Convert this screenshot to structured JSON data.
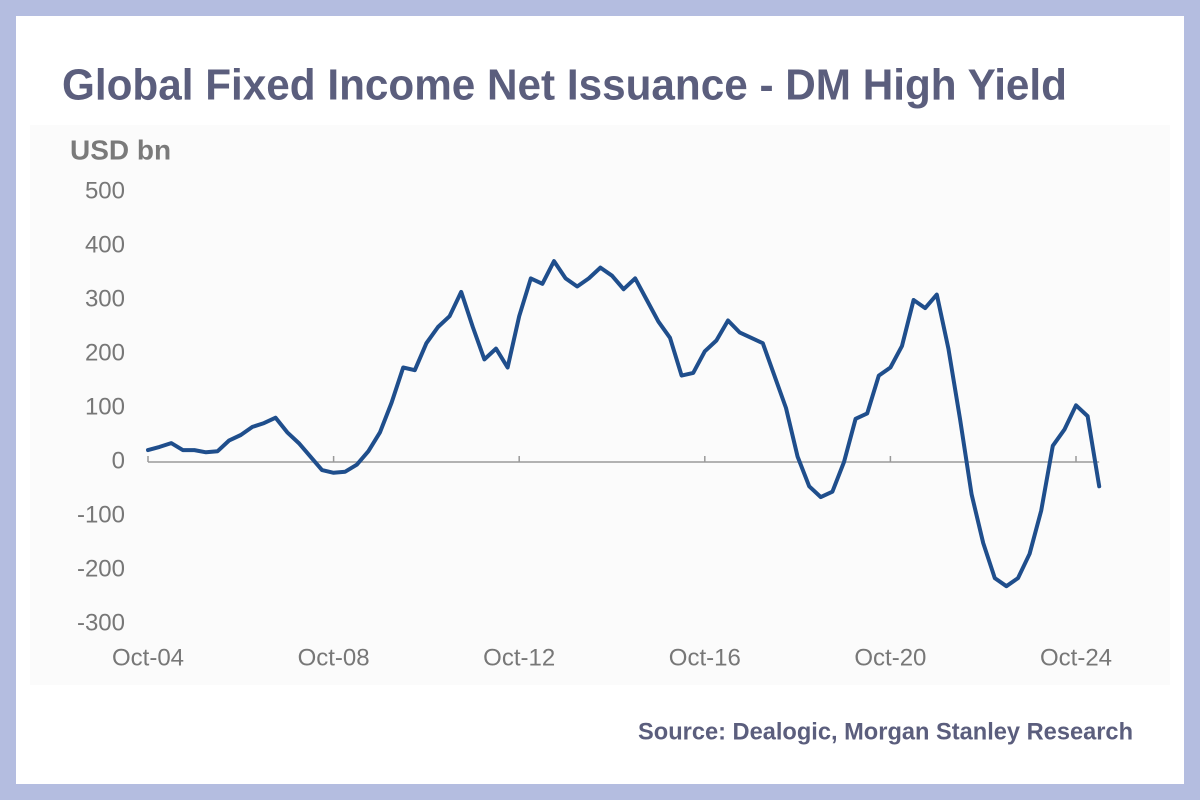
{
  "chart_data": {
    "type": "line",
    "title": "Global Fixed Income Net Issuance - DM High Yield",
    "y_axis_label": "USD bn",
    "source": "Source: Dealogic, Morgan Stanley Research",
    "categories": [
      "Oct-04",
      "Jan-05",
      "Apr-05",
      "Jul-05",
      "Oct-05",
      "Jan-06",
      "Apr-06",
      "Jul-06",
      "Oct-06",
      "Jan-07",
      "Apr-07",
      "Jul-07",
      "Oct-07",
      "Jan-08",
      "Apr-08",
      "Jul-08",
      "Oct-08",
      "Jan-09",
      "Apr-09",
      "Jul-09",
      "Oct-09",
      "Jan-10",
      "Apr-10",
      "Jul-10",
      "Oct-10",
      "Jan-11",
      "Apr-11",
      "Jul-11",
      "Oct-11",
      "Jan-12",
      "Apr-12",
      "Jul-12",
      "Oct-12",
      "Jan-13",
      "Apr-13",
      "Jul-13",
      "Oct-13",
      "Jan-14",
      "Apr-14",
      "Jul-14",
      "Oct-14",
      "Jan-15",
      "Apr-15",
      "Jul-15",
      "Oct-15",
      "Jan-16",
      "Apr-16",
      "Jul-16",
      "Oct-16",
      "Jan-17",
      "Apr-17",
      "Jul-17",
      "Oct-17",
      "Jan-18",
      "Apr-18",
      "Jul-18",
      "Oct-18",
      "Jan-19",
      "Apr-19",
      "Jul-19",
      "Oct-19",
      "Jan-20",
      "Apr-20",
      "Jul-20",
      "Oct-20",
      "Jan-21",
      "Apr-21",
      "Jul-21",
      "Oct-21",
      "Jan-22",
      "Apr-22",
      "Jul-22",
      "Oct-22",
      "Jan-23",
      "Apr-23",
      "Jul-23",
      "Oct-23",
      "Jan-24",
      "Apr-24",
      "Jul-24",
      "Oct-24",
      "Jan-25",
      "Apr-25"
    ],
    "values": [
      22,
      28,
      35,
      22,
      22,
      18,
      20,
      40,
      50,
      65,
      72,
      82,
      55,
      35,
      10,
      -15,
      -20,
      -18,
      -5,
      20,
      55,
      110,
      175,
      170,
      220,
      250,
      270,
      315,
      250,
      190,
      210,
      175,
      270,
      340,
      330,
      372,
      340,
      325,
      340,
      360,
      345,
      320,
      340,
      300,
      260,
      230,
      160,
      165,
      205,
      225,
      262,
      240,
      230,
      220,
      160,
      100,
      10,
      -45,
      -65,
      -55,
      0,
      80,
      90,
      160,
      175,
      215,
      300,
      285,
      310,
      210,
      80,
      -60,
      -150,
      -215,
      -230,
      -215,
      -170,
      -90,
      30,
      60,
      105,
      85,
      -45
    ],
    "color": "#1f4e8c",
    "ylim": [
      -300,
      500
    ],
    "yticks": [
      -300,
      -200,
      -100,
      0,
      100,
      200,
      300,
      400,
      500
    ],
    "xticks": [
      "Oct-04",
      "Oct-08",
      "Oct-12",
      "Oct-16",
      "Oct-20",
      "Oct-24"
    ]
  }
}
